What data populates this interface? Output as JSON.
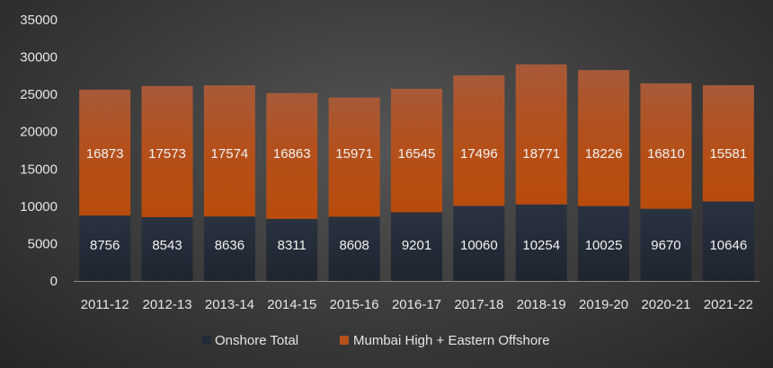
{
  "chart_data": {
    "type": "bar",
    "stacked": true,
    "title": "",
    "xlabel": "",
    "ylabel": "",
    "ylim": [
      0,
      35000
    ],
    "yticks": [
      0,
      5000,
      10000,
      15000,
      20000,
      25000,
      30000,
      35000
    ],
    "grid": false,
    "legend_position": "bottom",
    "categories": [
      "2011-12",
      "2012-13",
      "2013-14",
      "2014-15",
      "2015-16",
      "2016-17",
      "2017-18",
      "2018-19",
      "2019-20",
      "2020-21",
      "2021-22"
    ],
    "series": [
      {
        "name": "Onshore Total",
        "color": "#232b38",
        "values": [
          8756,
          8543,
          8636,
          8311,
          8608,
          9201,
          10060,
          10254,
          10025,
          9670,
          10646
        ]
      },
      {
        "name": "Mumbai High + Eastern Offshore",
        "color": "#b5501b",
        "values": [
          16873,
          17573,
          17574,
          16863,
          15971,
          16545,
          17496,
          18771,
          18226,
          16810,
          15581
        ]
      }
    ]
  }
}
